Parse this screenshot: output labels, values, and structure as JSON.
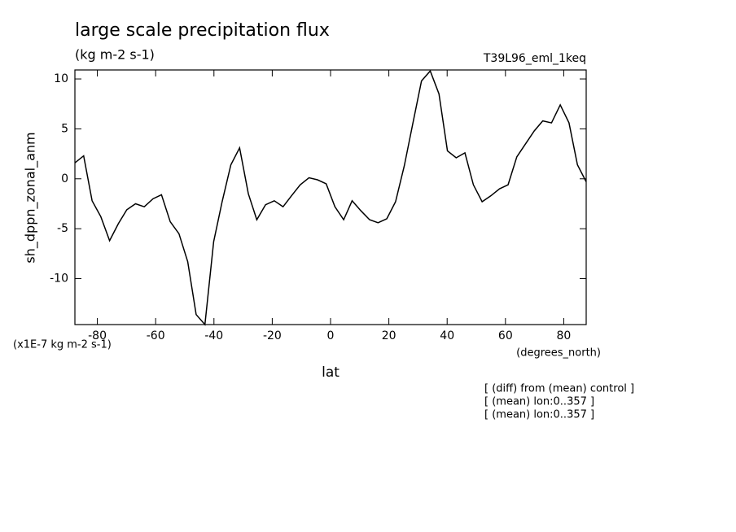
{
  "chart_data": {
    "type": "line",
    "title": "large scale precipitation flux",
    "subtitle": "(kg m-2 s-1)",
    "dataset": "T39L96_eml_1keq",
    "y_label": "sh_dppn_zonal_anm",
    "x_label": "lat",
    "y_units": "(x1E-7 kg m-2 s-1)",
    "x_units": "(degrees_north)",
    "notes": [
      "[ (diff) from (mean) control ]",
      "[ (mean) lon:0..357 ]",
      "[ (mean) lon:0..357 ]"
    ],
    "x": [
      -87.7,
      -84.7,
      -81.8,
      -78.8,
      -75.8,
      -72.8,
      -69.9,
      -66.9,
      -63.9,
      -60.9,
      -58.0,
      -55.0,
      -52.0,
      -49.0,
      -46.1,
      -43.1,
      -40.1,
      -37.2,
      -34.2,
      -31.2,
      -28.2,
      -25.3,
      -22.3,
      -19.3,
      -16.3,
      -13.4,
      -10.4,
      -7.4,
      -4.5,
      -1.5,
      1.5,
      4.5,
      7.4,
      10.4,
      13.4,
      16.3,
      19.3,
      22.3,
      25.3,
      28.2,
      31.2,
      34.2,
      37.2,
      40.1,
      43.1,
      46.1,
      49.0,
      52.0,
      55.0,
      58.0,
      60.9,
      63.9,
      66.9,
      69.9,
      72.8,
      75.8,
      78.8,
      81.8,
      84.7,
      87.7
    ],
    "series": [
      {
        "name": "sh_dppn_zonal_anm",
        "color": "#000000",
        "values": [
          1.6,
          2.3,
          -2.2,
          -3.8,
          -6.2,
          -4.5,
          -3.1,
          -2.5,
          -2.8,
          -2.0,
          -1.6,
          -4.3,
          -5.5,
          -8.3,
          -13.6,
          -14.6,
          -6.3,
          -2.3,
          1.4,
          3.1,
          -1.5,
          -4.1,
          -2.6,
          -2.2,
          -2.8,
          -1.7,
          -0.6,
          0.1,
          -0.1,
          -0.5,
          -2.8,
          -4.1,
          -2.2,
          -3.2,
          -4.1,
          -4.4,
          -4.0,
          -2.3,
          1.3,
          5.5,
          9.8,
          10.8,
          8.5,
          2.8,
          2.1,
          2.6,
          -0.6,
          -2.3,
          -1.7,
          -1.0,
          -0.6,
          2.2,
          3.5,
          4.8,
          5.8,
          5.6,
          7.4,
          5.6,
          1.4,
          -0.3
        ]
      }
    ],
    "xlim": [
      -87.7,
      87.7
    ],
    "xticks": [
      -80,
      -60,
      -40,
      -20,
      0,
      20,
      40,
      60,
      80
    ],
    "ylim": [
      -14.6,
      10.9
    ],
    "yticks": [
      -10,
      -5,
      0,
      5,
      10
    ]
  }
}
